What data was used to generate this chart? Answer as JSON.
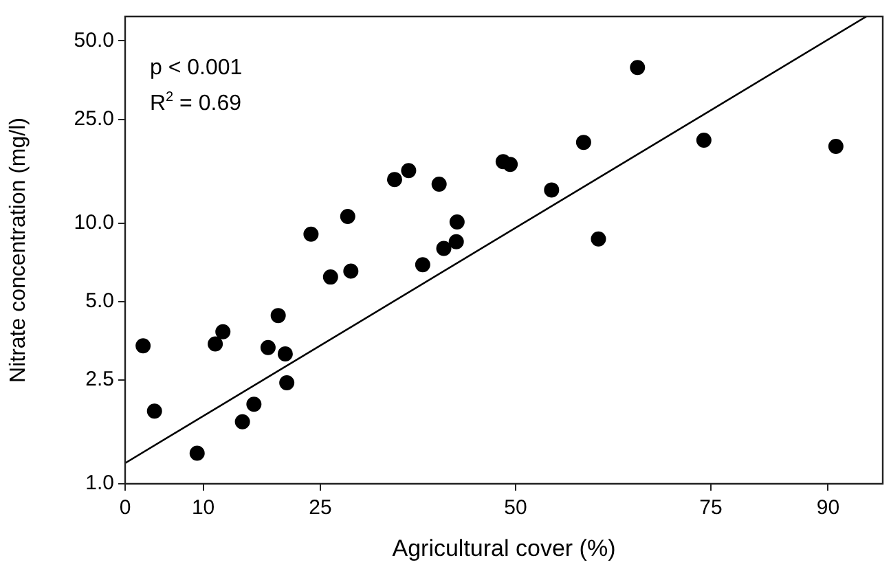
{
  "chart_data": {
    "type": "scatter",
    "xlabel": "Agricultural cover (%)",
    "ylabel": "Nitrate concentration (mg/l)",
    "annotations": [
      "p < 0.001",
      "R$^{2}$ = 0.69"
    ],
    "xlim": [
      0,
      97
    ],
    "xticks": [
      0,
      10,
      25,
      50,
      75,
      90
    ],
    "ylim": [
      1,
      62
    ],
    "yticks": [
      {
        "value": 1,
        "label": "1.0"
      },
      {
        "value": 2.5,
        "label": "2.5"
      },
      {
        "value": 5,
        "label": "5.0"
      },
      {
        "value": 10,
        "label": "10.0"
      },
      {
        "value": 25,
        "label": "25.0"
      },
      {
        "value": 50,
        "label": "50.0"
      }
    ],
    "log": "y",
    "grid": false,
    "legend": false,
    "marker": "circle",
    "series": [
      {
        "color": "#000000",
        "x": [
          2.3,
          3.76,
          9.22,
          11.54,
          12.52,
          15.02,
          16.49,
          18.3,
          19.6,
          20.5,
          20.7,
          23.8,
          26.3,
          28.5,
          28.9,
          34.5,
          36.3,
          38.1,
          40.2,
          42.5,
          42.4,
          40.8,
          48.4,
          49.3,
          54.6,
          58.7,
          60.6,
          65.6,
          74.1,
          91.0
        ],
        "values": [
          3.38,
          1.9,
          1.31,
          3.44,
          3.83,
          1.73,
          2.02,
          3.33,
          4.42,
          3.15,
          2.44,
          9.07,
          6.21,
          10.6,
          6.54,
          14.7,
          15.9,
          6.92,
          14.1,
          10.1,
          8.48,
          7.99,
          17.2,
          16.8,
          13.4,
          20.4,
          8.69,
          39.5,
          20.8,
          19.7
        ]
      },
      {
        "type": "line",
        "color": "#000000",
        "x": [
          0,
          94.9
        ],
        "values": [
          1.2,
          62
        ],
        "marker": "none",
        "line_style": "solid"
      }
    ]
  }
}
